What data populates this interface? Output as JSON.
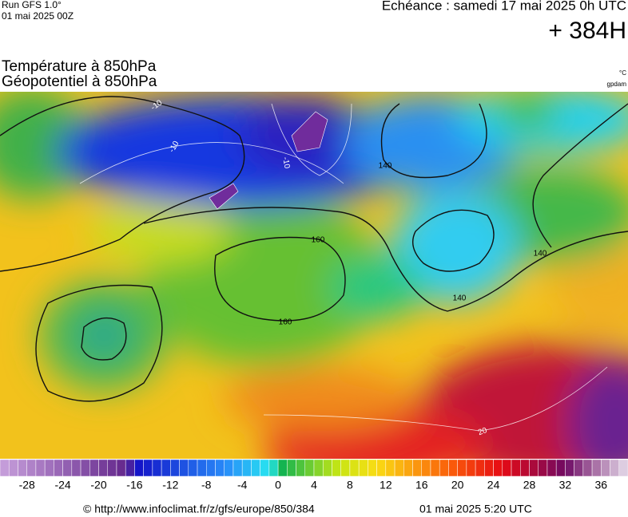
{
  "header": {
    "run": "Run GFS 1.0°",
    "date": "01 mai 2025 00Z",
    "echeance": "Echéance : samedi 17 mai 2025 0h UTC",
    "lead": "+ 384H"
  },
  "titles": {
    "line1": "Température à 850hPa",
    "line2": "Géopotentiel à 850hPa",
    "unit1": "°C",
    "unit2": "gpdam"
  },
  "map": {
    "isohypse_labels": [
      "140",
      "160",
      "160",
      "140",
      "140"
    ],
    "isotherm_labels": [
      "-10",
      "-10",
      "-10",
      "20"
    ]
  },
  "colorbar": {
    "lim": [
      -31,
      39
    ],
    "ticks": [
      -28,
      -24,
      -20,
      -16,
      -12,
      -8,
      -4,
      0,
      4,
      8,
      12,
      16,
      20,
      24,
      28,
      32,
      36
    ]
  },
  "footer": {
    "url": "© http://www.infoclimat.fr/z/gfs/europe/850/384",
    "time": "01 mai 2025  5:20 UTC"
  }
}
